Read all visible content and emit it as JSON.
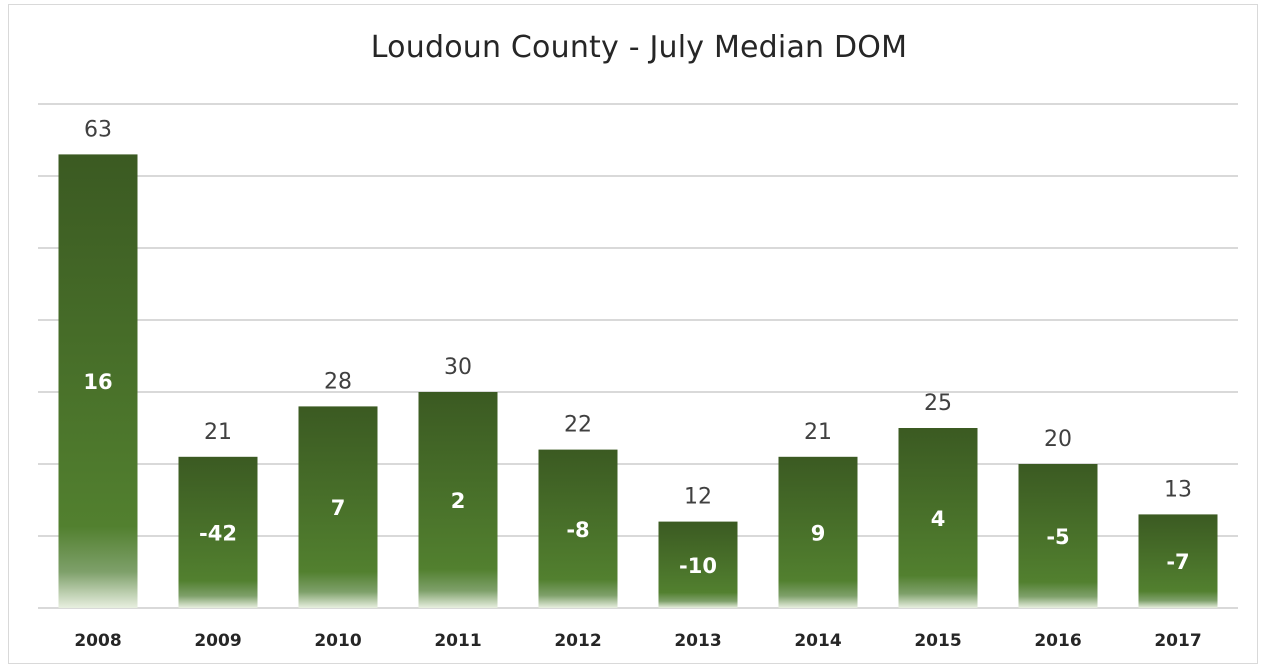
{
  "chart_data": {
    "type": "bar",
    "title": "Loudoun County - July Median DOM",
    "xlabel": "",
    "ylabel": "",
    "categories": [
      "2008",
      "2009",
      "2010",
      "2011",
      "2012",
      "2013",
      "2014",
      "2015",
      "2016",
      "2017"
    ],
    "series": [
      {
        "values": [
          63,
          21,
          28,
          30,
          22,
          12,
          21,
          25,
          20,
          13
        ]
      }
    ],
    "annotations": [
      "16",
      "-42",
      "7",
      "2",
      "-8",
      "-10",
      "9",
      "4",
      "-5",
      "-7"
    ],
    "ylim": [
      0,
      70
    ],
    "grid": true,
    "legend": "none",
    "colors": {
      "bar_top": "#3b5a22",
      "bar_mid": "#4f7d2e",
      "bar_fade": "#e8efe0",
      "grid": "#d9d9d9"
    }
  }
}
